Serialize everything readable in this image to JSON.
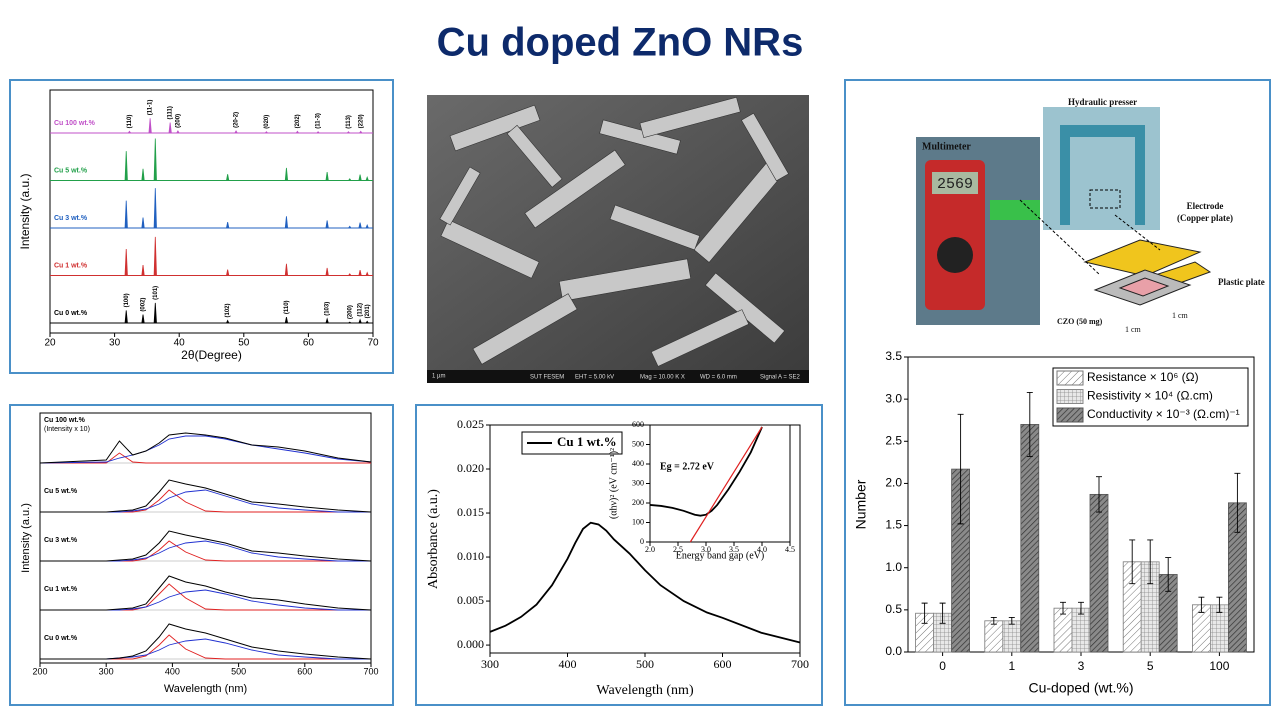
{
  "title": "Cu doped ZnO NRs",
  "sem": {
    "scale": "1 µm",
    "texts": [
      "SUT FESEM",
      "EHT = 5.00 kV",
      "Mag = 10.00 K X",
      "WD = 6.0 mm",
      "Signal A = SE2"
    ]
  },
  "photo": {
    "hydraulic": "Hydraulic presser",
    "multimeter": "Multimeter",
    "reading": "2569",
    "electrode": [
      "Electrode",
      "(Copper plate)"
    ],
    "plastic": "Plastic plate",
    "sample": "CZO (50 mg)",
    "size_a": "1 cm",
    "size_b": "1 cm"
  },
  "chart_data": [
    {
      "type": "peaks",
      "xlabel": "2θ(Degree)",
      "ylabel": "Intensity (a.u.)",
      "xlim": [
        20,
        70
      ],
      "xticks": [
        20,
        30,
        40,
        50,
        60,
        70
      ],
      "series": [
        {
          "name": "Cu 100 wt.%",
          "color": "#c050c8",
          "x": [
            32.3,
            35.5,
            38.6,
            39.8,
            48.8,
            53.5,
            58.3,
            61.5,
            66.2,
            68.1
          ],
          "values": [
            4,
            35,
            25,
            5,
            5,
            3,
            4,
            3,
            3,
            4
          ],
          "peak_labels": [
            "(110)",
            "(11-1)",
            "(111)",
            "(200)",
            "(20-2)",
            "(020)",
            "(202)",
            "(11-3)",
            "(113)",
            "(220)"
          ]
        },
        {
          "name": "Cu 5 wt.%",
          "color": "#22a04a",
          "x": [
            31.8,
            34.4,
            36.3,
            47.5,
            56.6,
            62.9,
            66.4,
            68.0,
            69.1
          ],
          "values": [
            70,
            28,
            100,
            15,
            30,
            20,
            4,
            14,
            8
          ]
        },
        {
          "name": "Cu 3 wt.%",
          "color": "#2060c0",
          "x": [
            31.8,
            34.4,
            36.3,
            47.5,
            56.6,
            62.9,
            66.4,
            68.0,
            69.1
          ],
          "values": [
            65,
            25,
            95,
            14,
            28,
            18,
            4,
            13,
            7
          ]
        },
        {
          "name": "Cu 1 wt.%",
          "color": "#d03030",
          "x": [
            31.8,
            34.4,
            36.3,
            47.5,
            56.6,
            62.9,
            66.4,
            68.0,
            69.1
          ],
          "values": [
            63,
            25,
            92,
            14,
            28,
            18,
            4,
            13,
            7
          ]
        },
        {
          "name": "Cu 0 wt.%",
          "color": "#000000",
          "x": [
            31.8,
            34.4,
            36.3,
            47.5,
            56.6,
            62.9,
            66.4,
            68.0,
            69.1
          ],
          "values": [
            30,
            20,
            48,
            6,
            14,
            10,
            2,
            8,
            4
          ],
          "peak_labels": [
            "(100)",
            "(002)",
            "(101)",
            "(102)",
            "(110)",
            "(103)",
            "(200)",
            "(112)",
            "(201)"
          ]
        }
      ]
    },
    {
      "type": "line",
      "xlabel": "Wavelength (nm)",
      "ylabel": "Intensity (a.u.)",
      "xlim": [
        200,
        700
      ],
      "xticks": [
        200,
        300,
        400,
        500,
        600,
        700
      ],
      "x": [
        200,
        300,
        320,
        340,
        360,
        380,
        395,
        420,
        450,
        480,
        520,
        560,
        600,
        650,
        700
      ],
      "panels": [
        {
          "label": "Cu 100 wt.%",
          "note": "(Intensity x 10)",
          "total": [
            0,
            3,
            22,
            8,
            12,
            20,
            28,
            30,
            28,
            25,
            18,
            16,
            12,
            5,
            1
          ],
          "components": [
            {
              "color": "#e02020",
              "values": [
                0,
                0,
                10,
                1,
                0,
                0,
                0,
                0,
                0,
                0,
                0,
                0,
                0,
                0,
                0
              ]
            },
            {
              "color": "#2030d0",
              "values": [
                0,
                1,
                5,
                8,
                12,
                18,
                24,
                27,
                27,
                24,
                18,
                14,
                10,
                4,
                1
              ]
            }
          ]
        },
        {
          "label": "Cu 5 wt.%",
          "total": [
            0,
            0,
            1,
            2,
            6,
            20,
            32,
            28,
            24,
            18,
            10,
            8,
            5,
            2,
            0
          ],
          "components": [
            {
              "color": "#e02020",
              "values": [
                0,
                0,
                0,
                0,
                2,
                12,
                22,
                10,
                1,
                0,
                0,
                0,
                0,
                0,
                0
              ]
            },
            {
              "color": "#2030d0",
              "values": [
                0,
                0,
                0,
                1,
                3,
                8,
                14,
                20,
                22,
                16,
                8,
                4,
                2,
                0,
                0
              ]
            }
          ]
        },
        {
          "label": "Cu 3 wt.%",
          "total": [
            0,
            0,
            1,
            2,
            6,
            18,
            30,
            26,
            22,
            18,
            10,
            8,
            5,
            2,
            0
          ],
          "components": [
            {
              "color": "#e02020",
              "values": [
                0,
                0,
                0,
                0,
                2,
                11,
                20,
                9,
                1,
                0,
                0,
                0,
                0,
                0,
                0
              ]
            },
            {
              "color": "#2030d0",
              "values": [
                0,
                0,
                0,
                1,
                3,
                8,
                13,
                18,
                20,
                16,
                8,
                4,
                2,
                0,
                0
              ]
            }
          ]
        },
        {
          "label": "Cu 1 wt.%",
          "total": [
            0,
            0,
            1,
            2,
            6,
            22,
            34,
            28,
            24,
            18,
            12,
            10,
            6,
            2,
            0
          ],
          "components": [
            {
              "color": "#e02020",
              "values": [
                0,
                0,
                0,
                0,
                3,
                16,
                26,
                12,
                1,
                0,
                0,
                0,
                0,
                0,
                0
              ]
            },
            {
              "color": "#2030d0",
              "values": [
                0,
                0,
                0,
                1,
                3,
                8,
                13,
                18,
                20,
                16,
                9,
                5,
                2,
                0,
                0
              ]
            }
          ]
        },
        {
          "label": "Cu 0 wt.%",
          "total": [
            0,
            0,
            1,
            3,
            8,
            22,
            35,
            30,
            26,
            20,
            12,
            8,
            5,
            2,
            0
          ],
          "components": [
            {
              "color": "#e02020",
              "values": [
                0,
                0,
                0,
                0,
                3,
                14,
                24,
                10,
                1,
                0,
                0,
                0,
                0,
                0,
                0
              ]
            },
            {
              "color": "#2030d0",
              "values": [
                0,
                0,
                1,
                2,
                4,
                9,
                14,
                18,
                20,
                16,
                9,
                4,
                2,
                0,
                0
              ]
            }
          ]
        }
      ]
    },
    {
      "type": "line",
      "xlabel": "Wavelength (nm)",
      "ylabel": "Absorbance (a.u.)",
      "xlim": [
        300,
        700
      ],
      "xticks": [
        300,
        400,
        500,
        600,
        700
      ],
      "ylim": [
        -0.0009,
        0.025
      ],
      "yticks": [
        {
          "value": 0,
          "label": "0.000"
        },
        0.005,
        {
          "value": 0.01,
          "label": "0.010"
        },
        0.015,
        {
          "value": 0.02,
          "label": "0.020"
        },
        0.025
      ],
      "legend": "upper-left",
      "x": [
        300,
        320,
        340,
        360,
        380,
        400,
        410,
        420,
        430,
        440,
        450,
        460,
        480,
        500,
        520,
        550,
        580,
        600,
        650,
        700
      ],
      "series": [
        {
          "name": "Cu 1 wt.%",
          "color": "#000000",
          "values": [
            0.0015,
            0.0022,
            0.0032,
            0.0046,
            0.0068,
            0.0098,
            0.0116,
            0.0132,
            0.0139,
            0.0137,
            0.013,
            0.012,
            0.0104,
            0.0085,
            0.0068,
            0.005,
            0.0037,
            0.0031,
            0.0014,
            0.0003
          ]
        }
      ]
    },
    {
      "type": "line",
      "xlabel": "Energy band gap (eV)",
      "ylabel": "(αhν)² (eV cm⁻¹)²",
      "annotation": "Eg = 2.72 eV",
      "xlim": [
        2.0,
        4.5
      ],
      "xticks": [
        {
          "value": 2,
          "label": "2.0"
        },
        2.5,
        {
          "value": 3,
          "label": "3.0"
        },
        3.5,
        {
          "value": 4,
          "label": "4.0"
        },
        4.5
      ],
      "ylim": [
        0,
        600
      ],
      "yticks": [
        0,
        100,
        200,
        300,
        400,
        500,
        600
      ],
      "series": [
        {
          "color": "#000000",
          "x": [
            2.0,
            2.2,
            2.4,
            2.6,
            2.8,
            2.9,
            3.0,
            3.1,
            3.2,
            3.4,
            3.6,
            3.8,
            4.0
          ],
          "values": [
            190,
            185,
            175,
            160,
            140,
            135,
            140,
            160,
            190,
            270,
            360,
            460,
            590
          ]
        },
        {
          "color": "#e02020",
          "x": [
            2.72,
            4.0
          ],
          "values": [
            0,
            590
          ]
        }
      ]
    },
    {
      "type": "bar",
      "xlabel": "Cu-doped (wt.%)",
      "ylabel": "Number",
      "categories": [
        "0",
        "1",
        "3",
        "5",
        "100"
      ],
      "ylim": [
        0,
        3.5
      ],
      "yticks": [
        {
          "value": 0,
          "label": "0.0"
        },
        0.5,
        {
          "value": 1,
          "label": "1.0"
        },
        1.5,
        {
          "value": 2,
          "label": "2.0"
        },
        2.5,
        {
          "value": 3,
          "label": "3.0"
        },
        3.5
      ],
      "legend": "upper-right",
      "series": [
        {
          "name": "Resistance × 10⁶ (Ω)",
          "color": "#777777",
          "pattern": "diagonal",
          "values": [
            0.46,
            0.37,
            0.52,
            1.07,
            0.56
          ],
          "errors": [
            0.12,
            0.04,
            0.07,
            0.26,
            0.09
          ]
        },
        {
          "name": "Resistivity × 10⁴ (Ω.cm)",
          "color": "#888888",
          "pattern": "grid",
          "values": [
            0.46,
            0.37,
            0.52,
            1.07,
            0.56
          ],
          "errors": [
            0.12,
            0.04,
            0.07,
            0.26,
            0.09
          ]
        },
        {
          "name": "Conductivity × 10⁻³ (Ω.cm)⁻¹",
          "color": "#555555",
          "pattern": "dense",
          "values": [
            2.17,
            2.7,
            1.87,
            0.92,
            1.77
          ],
          "errors": [
            0.65,
            0.38,
            0.21,
            0.2,
            0.35
          ]
        }
      ]
    }
  ]
}
